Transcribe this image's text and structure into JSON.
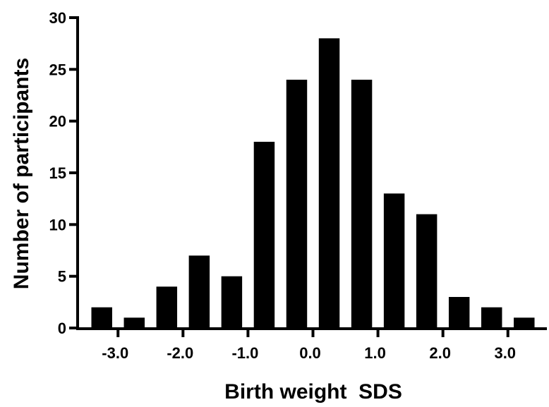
{
  "chart_data": {
    "type": "bar",
    "title": "",
    "xlabel": "Birth weight  SDS",
    "ylabel": "Number of participants",
    "bin_centers": [
      -3.25,
      -2.75,
      -2.25,
      -1.75,
      -1.25,
      -0.75,
      -0.25,
      0.25,
      0.75,
      1.25,
      1.75,
      2.25,
      2.75,
      3.25
    ],
    "values": [
      2,
      1,
      4,
      7,
      5,
      18,
      24,
      28,
      24,
      13,
      11,
      3,
      2,
      1
    ],
    "xlim": [
      -3.6,
      3.6
    ],
    "ylim": [
      0,
      30
    ],
    "x_ticks": [
      -3.0,
      -2.0,
      -1.0,
      0.0,
      1.0,
      2.0,
      3.0
    ],
    "x_tick_labels": [
      "-3.0",
      "-2.0",
      "-1.0",
      "0.0",
      "1.0",
      "2.0",
      "3.0"
    ],
    "y_ticks": [
      0,
      5,
      10,
      15,
      20,
      25,
      30
    ],
    "y_tick_labels": [
      "0",
      "5",
      "10",
      "15",
      "20",
      "25",
      "30"
    ],
    "bar_color": "#000000",
    "grid": false,
    "legend": "none"
  }
}
